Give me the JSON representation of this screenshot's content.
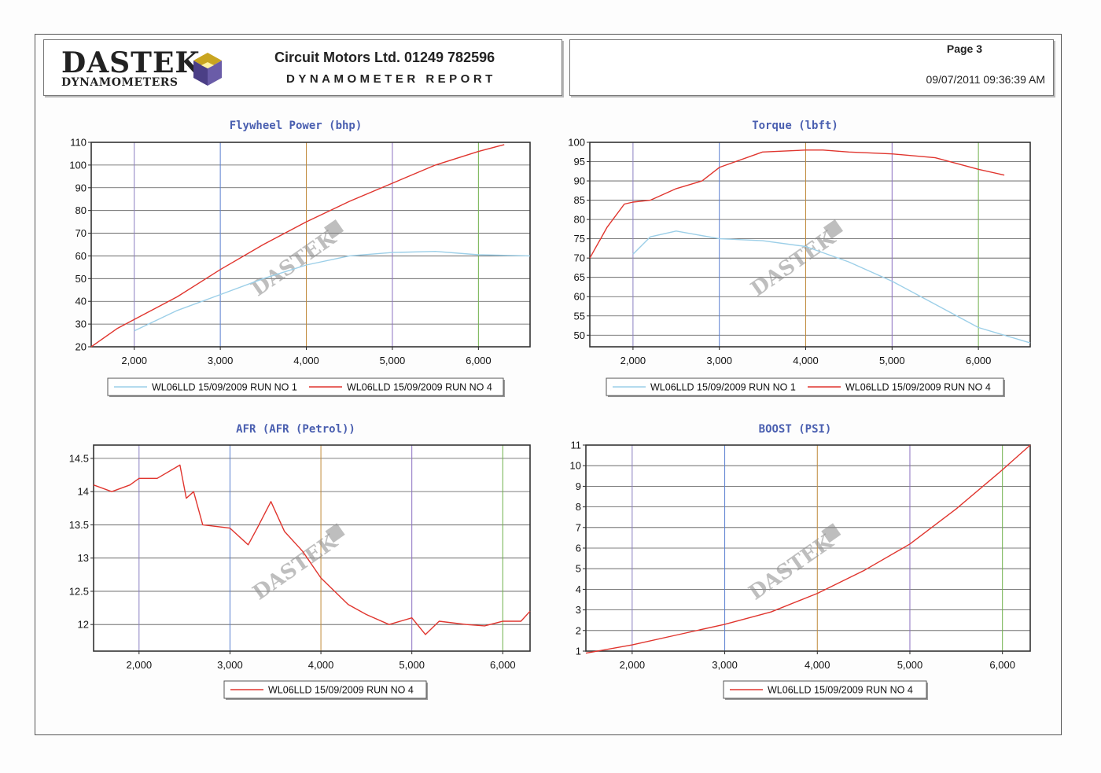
{
  "header": {
    "logo_word": "DASTEK",
    "logo_sub": "DYNAMOMETERS",
    "company": "Circuit Motors Ltd. 01249 782596",
    "report_title": "DYNAMOMETER REPORT",
    "page_label": "Page 3",
    "datetime": "09/07/2011 09:36:39 AM"
  },
  "watermark": "DASTEK",
  "colors": {
    "run1": "#9ccfe8",
    "run4": "#e0352e",
    "title": "#4a5fb0"
  },
  "chart_data": [
    {
      "id": "power",
      "type": "line",
      "title": "Flywheel Power (bhp)",
      "xlim": [
        1500,
        6600
      ],
      "ylim": [
        20,
        110
      ],
      "xticks": [
        2000,
        3000,
        4000,
        5000,
        6000
      ],
      "xtick_labels": [
        "2,000",
        "3,000",
        "4,000",
        "5,000",
        "6,000"
      ],
      "yticks": [
        20,
        30,
        40,
        50,
        60,
        70,
        80,
        90,
        100,
        110
      ],
      "ytick_labels": [
        "20",
        "30",
        "40",
        "50",
        "60",
        "70",
        "80",
        "90",
        "100",
        "110"
      ],
      "legend": [
        "WL06LLD 15/09/2009 RUN NO 1",
        "WL06LLD 15/09/2009 RUN NO 4"
      ],
      "series": [
        {
          "name": "WL06LLD 15/09/2009 RUN NO 1",
          "color": "#9ccfe8",
          "x": [
            2000,
            2500,
            3000,
            3500,
            4000,
            4500,
            5000,
            5500,
            6000,
            6600
          ],
          "y": [
            27,
            36,
            43,
            50,
            56,
            60,
            61.5,
            62,
            60.5,
            60
          ]
        },
        {
          "name": "WL06LLD 15/09/2009 RUN NO 4",
          "color": "#e0352e",
          "x": [
            1500,
            1800,
            2000,
            2500,
            3000,
            3500,
            4000,
            4500,
            5000,
            5500,
            6000,
            6300
          ],
          "y": [
            20,
            28,
            32,
            42,
            54,
            65,
            75,
            84,
            92,
            100,
            106,
            109
          ]
        }
      ]
    },
    {
      "id": "torque",
      "type": "line",
      "title": "Torque (lbft)",
      "xlim": [
        1500,
        6600
      ],
      "ylim": [
        47,
        100
      ],
      "xticks": [
        2000,
        3000,
        4000,
        5000,
        6000
      ],
      "xtick_labels": [
        "2,000",
        "3,000",
        "4,000",
        "5,000",
        "6,000"
      ],
      "yticks": [
        50,
        55,
        60,
        65,
        70,
        75,
        80,
        85,
        90,
        95,
        100
      ],
      "ytick_labels": [
        "50",
        "55",
        "60",
        "65",
        "70",
        "75",
        "80",
        "85",
        "90",
        "95",
        "100"
      ],
      "legend": [
        "WL06LLD 15/09/2009 RUN NO 1",
        "WL06LLD 15/09/2009 RUN NO 4"
      ],
      "series": [
        {
          "name": "WL06LLD 15/09/2009 RUN NO 1",
          "color": "#9ccfe8",
          "x": [
            2000,
            2200,
            2500,
            3000,
            3500,
            4000,
            4500,
            5000,
            5500,
            6000,
            6600
          ],
          "y": [
            71,
            75.5,
            77,
            75,
            74.5,
            73,
            69,
            64,
            58,
            52,
            48
          ]
        },
        {
          "name": "WL06LLD 15/09/2009 RUN NO 4",
          "color": "#e0352e",
          "x": [
            1500,
            1700,
            1900,
            2000,
            2200,
            2500,
            2800,
            3000,
            3500,
            4000,
            4200,
            4500,
            5000,
            5500,
            6000,
            6300
          ],
          "y": [
            70,
            78,
            84,
            84.5,
            85,
            88,
            90,
            93.5,
            97.5,
            98,
            98,
            97.5,
            97,
            96,
            93,
            91.5
          ]
        }
      ]
    },
    {
      "id": "afr",
      "type": "line",
      "title": "AFR (AFR (Petrol))",
      "xlim": [
        1500,
        6300
      ],
      "ylim": [
        11.6,
        14.7
      ],
      "xticks": [
        2000,
        3000,
        4000,
        5000,
        6000
      ],
      "xtick_labels": [
        "2,000",
        "3,000",
        "4,000",
        "5,000",
        "6,000"
      ],
      "yticks": [
        12,
        12.5,
        13,
        13.5,
        14,
        14.5
      ],
      "ytick_labels": [
        "12",
        "12.5",
        "13",
        "13.5",
        "14",
        "14.5"
      ],
      "legend": [
        "WL06LLD 15/09/2009 RUN NO 4"
      ],
      "series": [
        {
          "name": "WL06LLD 15/09/2009 RUN NO 4",
          "color": "#e0352e",
          "x": [
            1500,
            1700,
            1900,
            2000,
            2200,
            2450,
            2520,
            2600,
            2700,
            3000,
            3200,
            3300,
            3450,
            3600,
            3800,
            4000,
            4300,
            4500,
            4750,
            5000,
            5150,
            5300,
            5600,
            5800,
            6000,
            6200,
            6300
          ],
          "y": [
            14.1,
            14.0,
            14.1,
            14.2,
            14.2,
            14.4,
            13.9,
            14.0,
            13.5,
            13.45,
            13.2,
            13.45,
            13.85,
            13.4,
            13.1,
            12.7,
            12.3,
            12.15,
            12.0,
            12.1,
            11.85,
            12.05,
            12.0,
            11.98,
            12.05,
            12.05,
            12.2
          ]
        }
      ]
    },
    {
      "id": "boost",
      "type": "line",
      "title": "BOOST (PSI)",
      "xlim": [
        1500,
        6300
      ],
      "ylim": [
        1,
        11
      ],
      "xticks": [
        2000,
        3000,
        4000,
        5000,
        6000
      ],
      "xtick_labels": [
        "2,000",
        "3,000",
        "4,000",
        "5,000",
        "6,000"
      ],
      "yticks": [
        1,
        2,
        3,
        4,
        5,
        6,
        7,
        8,
        9,
        10,
        11
      ],
      "ytick_labels": [
        "1",
        "2",
        "3",
        "4",
        "5",
        "6",
        "7",
        "8",
        "9",
        "10",
        "11"
      ],
      "legend": [
        "WL06LLD 15/09/2009 RUN NO 4"
      ],
      "series": [
        {
          "name": "WL06LLD 15/09/2009 RUN NO 4",
          "color": "#e0352e",
          "x": [
            1500,
            2000,
            2500,
            3000,
            3500,
            4000,
            4500,
            5000,
            5500,
            6000,
            6300
          ],
          "y": [
            0.9,
            1.3,
            1.8,
            2.3,
            2.9,
            3.8,
            4.9,
            6.2,
            7.9,
            9.8,
            11
          ]
        }
      ]
    }
  ]
}
